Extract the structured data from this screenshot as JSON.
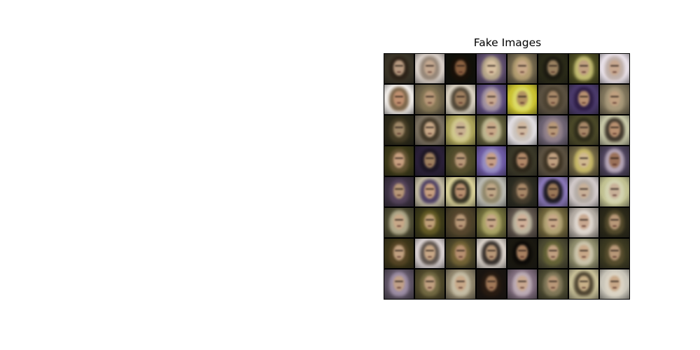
{
  "figure": {
    "title": "Fake Images"
  },
  "grid": {
    "rows": 8,
    "cols": 8,
    "tiles": [
      {
        "bg": "#3a3528",
        "hair": "#2b2016",
        "face": "#b89a80"
      },
      {
        "bg": "#d8cfc8",
        "hair": "#8a7a6a",
        "face": "#c4a890"
      },
      {
        "bg": "#10100a",
        "hair": "#1a1008",
        "face": "#8a6040"
      },
      {
        "bg": "#5a4a6a",
        "hair": "#c8b890",
        "face": "#d8c0a0"
      },
      {
        "bg": "#6a6048",
        "hair": "#c0a878",
        "face": "#c8a888"
      },
      {
        "bg": "#2a2a18",
        "hair": "#1a1810",
        "face": "#9a8060"
      },
      {
        "bg": "#4a4a20",
        "hair": "#d8d080",
        "face": "#c0a080"
      },
      {
        "bg": "#e8e0e8",
        "hair": "#b8a8a0",
        "face": "#c8a890"
      },
      {
        "bg": "#f0ece8",
        "hair": "#6a5030",
        "face": "#c09070"
      },
      {
        "bg": "#6a6048",
        "hair": "#8a7a58",
        "face": "#b89878"
      },
      {
        "bg": "#d8d0c0",
        "hair": "#3a3020",
        "face": "#a08060"
      },
      {
        "bg": "#5a4a7a",
        "hair": "#b0a0a8",
        "face": "#c8a890"
      },
      {
        "bg": "#c8c030",
        "hair": "#e0e070",
        "face": "#b09060"
      },
      {
        "bg": "#5a5040",
        "hair": "#4a4030",
        "face": "#a88868"
      },
      {
        "bg": "#4a3a6a",
        "hair": "#2a1a40",
        "face": "#b89070"
      },
      {
        "bg": "#7a7058",
        "hair": "#b0a080",
        "face": "#c0a080"
      },
      {
        "bg": "#2a2818",
        "hair": "#4a4028",
        "face": "#a08868"
      },
      {
        "bg": "#7a7060",
        "hair": "#3a3020",
        "face": "#c8a888"
      },
      {
        "bg": "#a8a058",
        "hair": "#d8d098",
        "face": "#c8b090"
      },
      {
        "bg": "#5a5838",
        "hair": "#d0c8a0",
        "face": "#c8a888"
      },
      {
        "bg": "#e0dce0",
        "hair": "#c8c0b8",
        "face": "#d0b8a0"
      },
      {
        "bg": "#6a6070",
        "hair": "#9a8890",
        "face": "#b89878"
      },
      {
        "bg": "#4a4828",
        "hair": "#2a2818",
        "face": "#a88868"
      },
      {
        "bg": "#c8c8a8",
        "hair": "#2a2018",
        "face": "#b89070"
      },
      {
        "bg": "#3a3818",
        "hair": "#6a5838",
        "face": "#c8a080"
      },
      {
        "bg": "#2a2038",
        "hair": "#1a1420",
        "face": "#a08060"
      },
      {
        "bg": "#4a4828",
        "hair": "#5a5030",
        "face": "#b89878"
      },
      {
        "bg": "#6a58a0",
        "hair": "#a098c8",
        "face": "#c8a088"
      },
      {
        "bg": "#3a3828",
        "hair": "#2a2418",
        "face": "#b08868"
      },
      {
        "bg": "#5a5040",
        "hair": "#3a3020",
        "face": "#c0a080"
      },
      {
        "bg": "#6a6040",
        "hair": "#d8c870",
        "face": "#d0b890"
      },
      {
        "bg": "#4a4058",
        "hair": "#c8b8c8",
        "face": "#9a7058"
      },
      {
        "bg": "#3a3040",
        "hair": "#5a4860",
        "face": "#b89878"
      },
      {
        "bg": "#c0b8a0",
        "hair": "#3a2c5a",
        "face": "#c8a080"
      },
      {
        "bg": "#d8d098",
        "hair": "#1a1810",
        "face": "#b89070"
      },
      {
        "bg": "#b8b8b0",
        "hair": "#8a8060",
        "face": "#c0a888"
      },
      {
        "bg": "#2a2a20",
        "hair": "#4a4030",
        "face": "#a88868"
      },
      {
        "bg": "#8a78b8",
        "hair": "#0a0a08",
        "face": "#9a7858"
      },
      {
        "bg": "#d0c8c8",
        "hair": "#b0a8a0",
        "face": "#c8b098"
      },
      {
        "bg": "#c0c090",
        "hair": "#d8d8b8",
        "face": "#c8b098"
      },
      {
        "bg": "#4a4830",
        "hair": "#c0b898",
        "face": "#c8a888"
      },
      {
        "bg": "#3a3818",
        "hair": "#6a6028",
        "face": "#c0a078"
      },
      {
        "bg": "#4a4028",
        "hair": "#5a4830",
        "face": "#b89878"
      },
      {
        "bg": "#6a6838",
        "hair": "#b8b070",
        "face": "#c8a888"
      },
      {
        "bg": "#5a5048",
        "hair": "#d0c8b0",
        "face": "#d0b098"
      },
      {
        "bg": "#6a6038",
        "hair": "#c0b080",
        "face": "#c8a888"
      },
      {
        "bg": "#b0a8a0",
        "hair": "#e8e0d8",
        "face": "#c8a890"
      },
      {
        "bg": "#2a2818",
        "hair": "#5a5030",
        "face": "#b89878"
      },
      {
        "bg": "#3a3418",
        "hair": "#5a4828",
        "face": "#c0a080"
      },
      {
        "bg": "#d8d0d0",
        "hair": "#4a4038",
        "face": "#c8a888"
      },
      {
        "bg": "#4a4428",
        "hair": "#7a6838",
        "face": "#b89070"
      },
      {
        "bg": "#d8d0c8",
        "hair": "#1a1410",
        "face": "#b89878"
      },
      {
        "bg": "#1a1810",
        "hair": "#0a0806",
        "face": "#a88060"
      },
      {
        "bg": "#4a4830",
        "hair": "#6a6838",
        "face": "#c0a080"
      },
      {
        "bg": "#8a8868",
        "hair": "#d8d0b8",
        "face": "#c8a888"
      },
      {
        "bg": "#3a3820",
        "hair": "#5a5030",
        "face": "#b89878"
      },
      {
        "bg": "#5a5060",
        "hair": "#a898b0",
        "face": "#c0a088"
      },
      {
        "bg": "#4a4428",
        "hair": "#7a7048",
        "face": "#c0a080"
      },
      {
        "bg": "#8a8068",
        "hair": "#d0c8b0",
        "face": "#c8a888"
      },
      {
        "bg": "#1a1410",
        "hair": "#2a1c12",
        "face": "#a07858"
      },
      {
        "bg": "#7a6878",
        "hair": "#c8b8c0",
        "face": "#c8a890"
      },
      {
        "bg": "#4a4830",
        "hair": "#8a8060",
        "face": "#b89878"
      },
      {
        "bg": "#c8c098",
        "hair": "#3a3020",
        "face": "#c8b088"
      },
      {
        "bg": "#c8c4b8",
        "hair": "#e0d8c8",
        "face": "#c8a888"
      }
    ]
  }
}
